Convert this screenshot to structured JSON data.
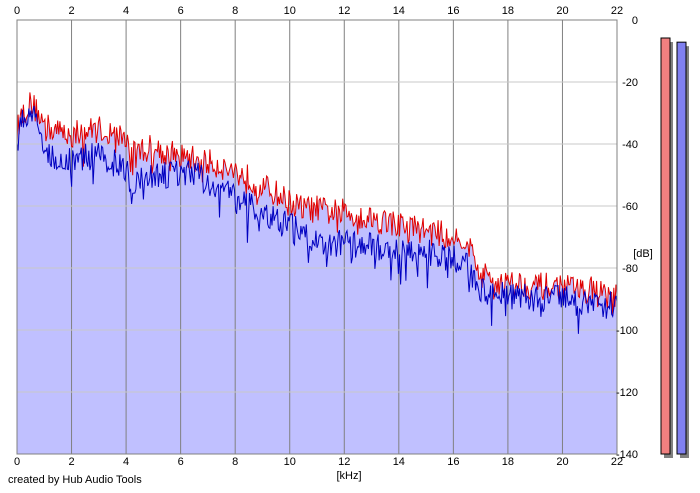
{
  "footer": {
    "credit": "created by Hub Audio Tools"
  },
  "chart_data": {
    "type": "area",
    "xlabel": "[kHz]",
    "ylabel": "[dB]",
    "xlim": [
      0,
      22
    ],
    "ylim": [
      -140,
      0
    ],
    "x_ticks": [
      "0",
      "2",
      "4",
      "6",
      "8",
      "10",
      "12",
      "14",
      "16",
      "18",
      "20",
      "22"
    ],
    "y_ticks": [
      "0",
      "-20",
      "-40",
      "-60",
      "-80",
      "-100",
      "-120",
      "-140"
    ],
    "grid": true,
    "colors": {
      "fill": "#c0c0ff",
      "red": "#e00000",
      "blue": "#0000c0",
      "red_meter": "#f08080",
      "blue_meter": "#8080f0"
    },
    "series": [
      {
        "color": "red",
        "x": [
          0,
          0.1,
          0.3,
          0.5,
          0.8,
          1.0,
          1.5,
          2.0,
          2.5,
          3.0,
          3.5,
          4.0,
          4.2,
          4.5,
          5.0,
          5.5,
          6.0,
          6.5,
          7.0,
          7.5,
          8.0,
          8.5,
          9.0,
          9.5,
          10.0,
          10.5,
          11.0,
          11.5,
          12.0,
          12.5,
          13.0,
          13.5,
          14.0,
          14.5,
          15.0,
          15.5,
          16.0,
          16.5,
          16.8,
          17.0,
          17.5,
          18.0,
          18.5,
          19.0,
          19.5,
          20.0,
          20.5,
          21.0,
          21.5,
          22.0
        ],
        "y": [
          -36,
          -32,
          -29,
          -27,
          -30,
          -34,
          -36,
          -37,
          -36,
          -35,
          -37,
          -38,
          -43,
          -42,
          -41,
          -43,
          -44,
          -45,
          -46,
          -47,
          -49,
          -51,
          -54,
          -56,
          -59,
          -61,
          -61,
          -62,
          -62,
          -63,
          -64,
          -65,
          -66,
          -67,
          -68,
          -69,
          -70,
          -71,
          -78,
          -82,
          -84,
          -85,
          -85,
          -86,
          -86,
          -86,
          -87,
          -87,
          -88,
          -90
        ]
      },
      {
        "color": "blue",
        "x": [
          0,
          0.1,
          0.3,
          0.5,
          0.8,
          1.0,
          1.5,
          2.0,
          2.5,
          3.0,
          3.5,
          4.0,
          4.2,
          4.5,
          5.0,
          5.5,
          6.0,
          6.5,
          7.0,
          7.5,
          8.0,
          8.5,
          9.0,
          9.5,
          10.0,
          10.5,
          11.0,
          11.5,
          12.0,
          12.5,
          13.0,
          13.5,
          14.0,
          14.5,
          15.0,
          15.5,
          16.0,
          16.5,
          16.8,
          17.0,
          17.5,
          18.0,
          18.5,
          19.0,
          19.5,
          20.0,
          20.5,
          21.0,
          21.5,
          22.0
        ],
        "y": [
          -40,
          -35,
          -31,
          -29,
          -35,
          -42,
          -45,
          -45,
          -44,
          -44,
          -46,
          -48,
          -55,
          -52,
          -51,
          -50,
          -49,
          -50,
          -52,
          -54,
          -58,
          -60,
          -63,
          -65,
          -66,
          -70,
          -71,
          -72,
          -72,
          -73,
          -73,
          -74,
          -75,
          -75,
          -75,
          -76,
          -77,
          -78,
          -84,
          -87,
          -88,
          -89,
          -89,
          -90,
          -90,
          -90,
          -91,
          -91,
          -92,
          -92
        ]
      }
    ],
    "meters": {
      "left_channel_level": 1.0,
      "right_channel_level": 0.99
    }
  }
}
